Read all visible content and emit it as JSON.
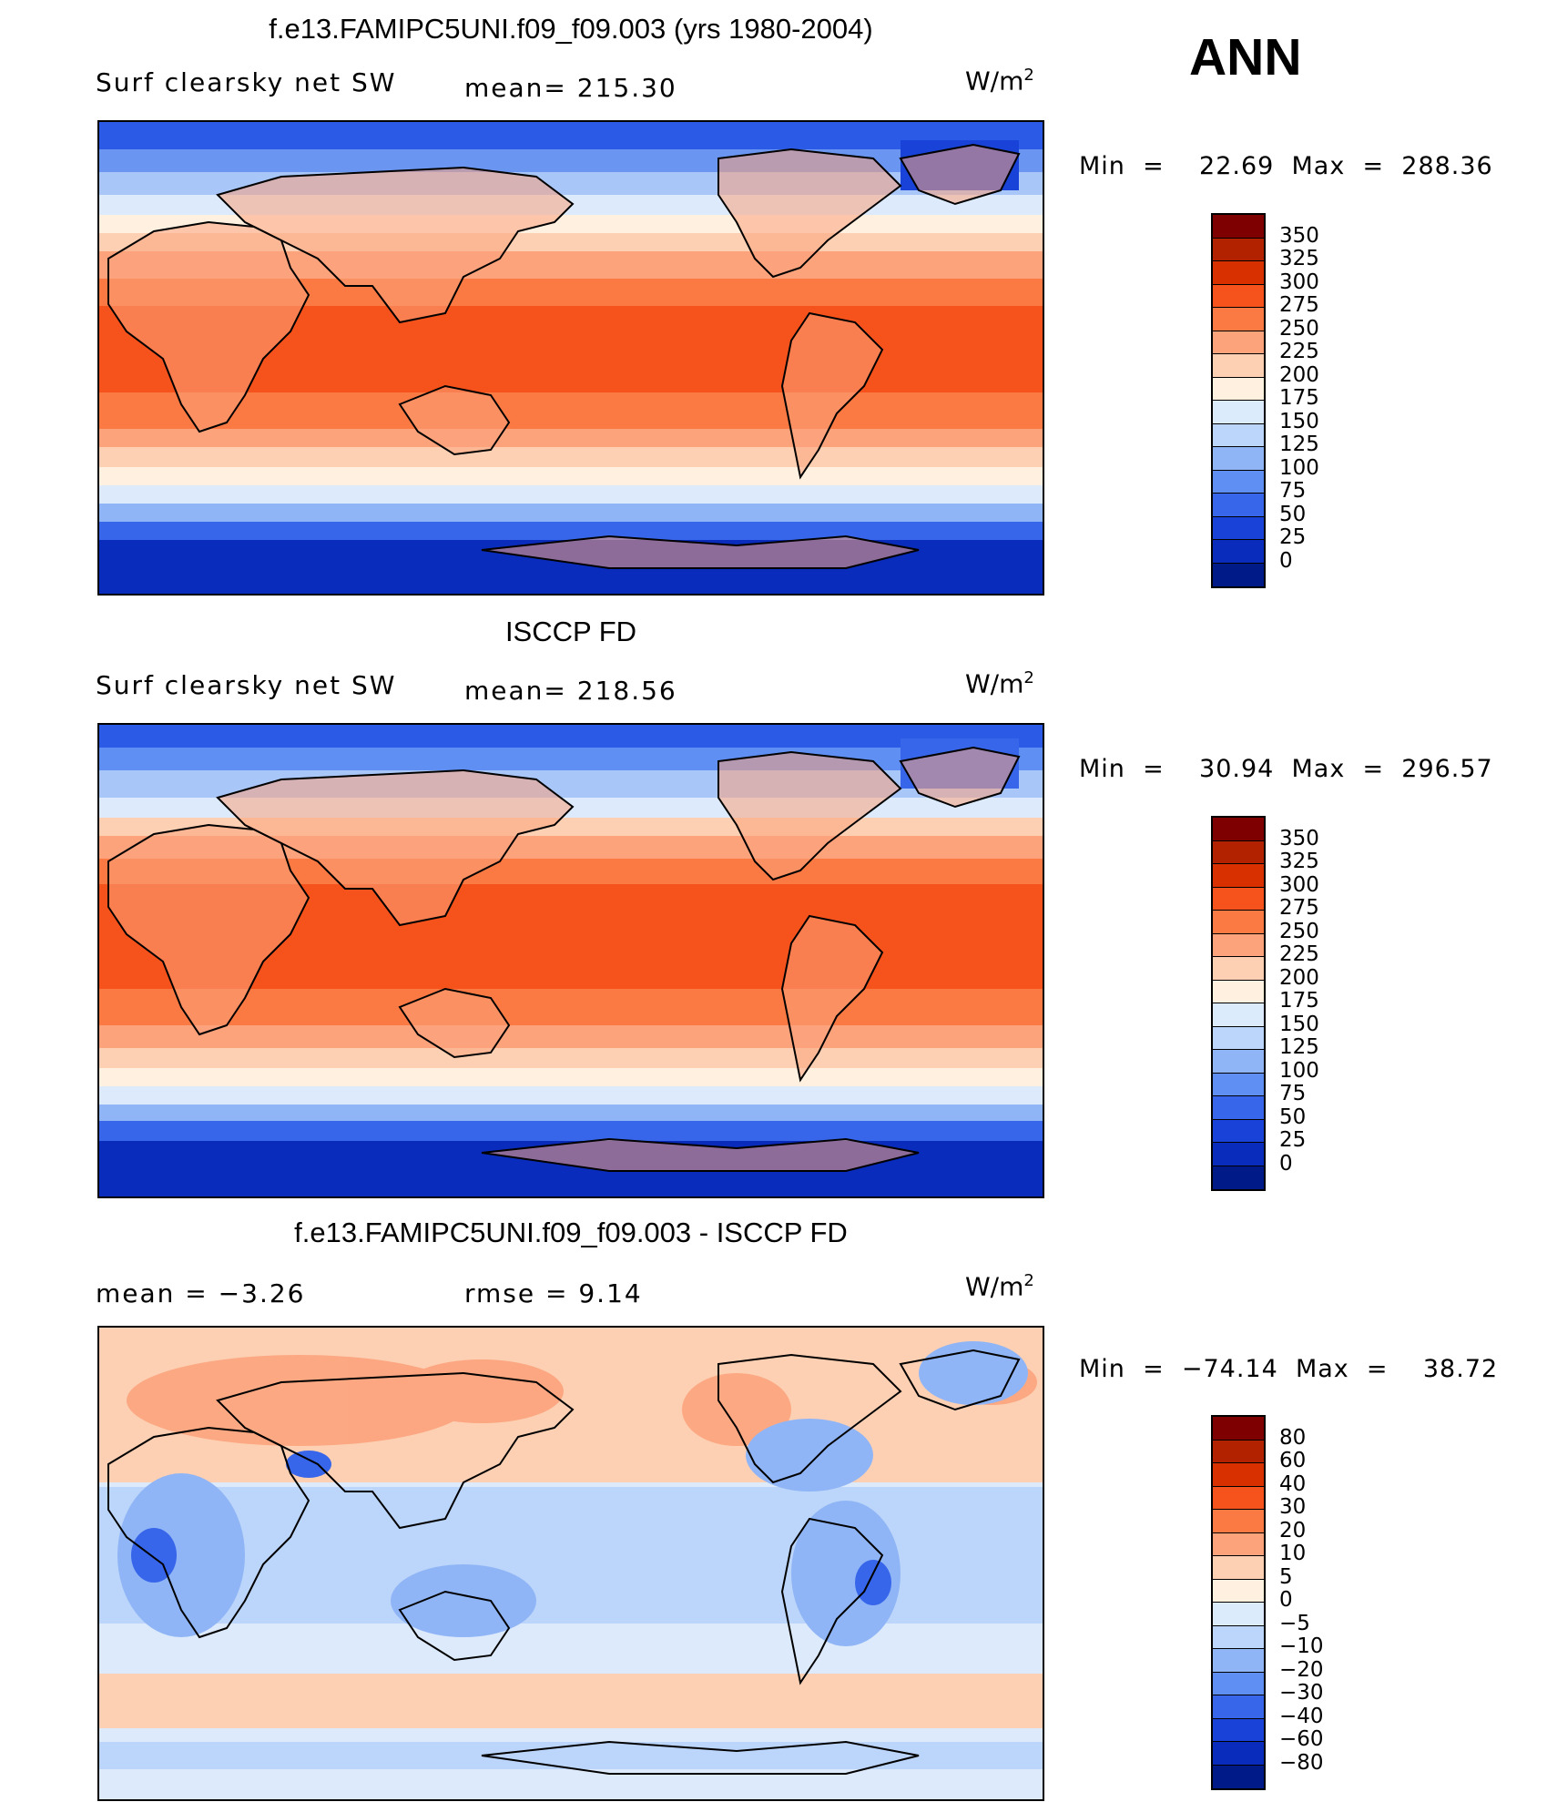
{
  "season": "ANN",
  "panels": [
    {
      "title": "f.e13.FAMIPC5UNI.f09_f09.003 (yrs 1980-2004)",
      "left_label": "Surf  clearsky  net  SW",
      "center_label": "mean=  215.30",
      "units": "W/m",
      "units_sup": "2",
      "min_max": "Min  =    22.69  Max  =  288.36"
    },
    {
      "title": "ISCCP FD",
      "left_label": "Surf  clearsky  net  SW",
      "center_label": "mean=  218.56",
      "units": "W/m",
      "units_sup": "2",
      "min_max": "Min  =    30.94  Max  =  296.57"
    },
    {
      "title": "f.e13.FAMIPC5UNI.f09_f09.003 - ISCCP FD",
      "left_label": "mean  =    −3.26",
      "center_label": "rmse  =      9.14",
      "units": "W/m",
      "units_sup": "2",
      "min_max": "Min  =  −74.14  Max  =    38.72"
    }
  ],
  "colorbars": {
    "absolute": {
      "levels": [
        "350",
        "325",
        "300",
        "275",
        "250",
        "225",
        "200",
        "175",
        "150",
        "125",
        "100",
        "75",
        "50",
        "25",
        "0"
      ],
      "colors": [
        "#7f0000",
        "#b32200",
        "#d93000",
        "#f5521c",
        "#fb7a44",
        "#fca37c",
        "#fdd0b4",
        "#fff0e0",
        "#dcebfb",
        "#bcd5fa",
        "#8fb5f6",
        "#5f8ff2",
        "#3766ea",
        "#1943d8",
        "#0a2cbc",
        "#001a88"
      ]
    },
    "difference": {
      "levels": [
        "80",
        "60",
        "40",
        "30",
        "20",
        "10",
        "5",
        "0",
        "−5",
        "−10",
        "−20",
        "−30",
        "−40",
        "−60",
        "−80"
      ],
      "colors": [
        "#7f0000",
        "#b32200",
        "#d93000",
        "#f5521c",
        "#fb7a44",
        "#fca37c",
        "#fdd0b4",
        "#fff0e0",
        "#dcebfb",
        "#bcd5fa",
        "#8fb5f6",
        "#5f8ff2",
        "#3766ea",
        "#1943d8",
        "#0a2cbc",
        "#001a88"
      ]
    }
  }
}
